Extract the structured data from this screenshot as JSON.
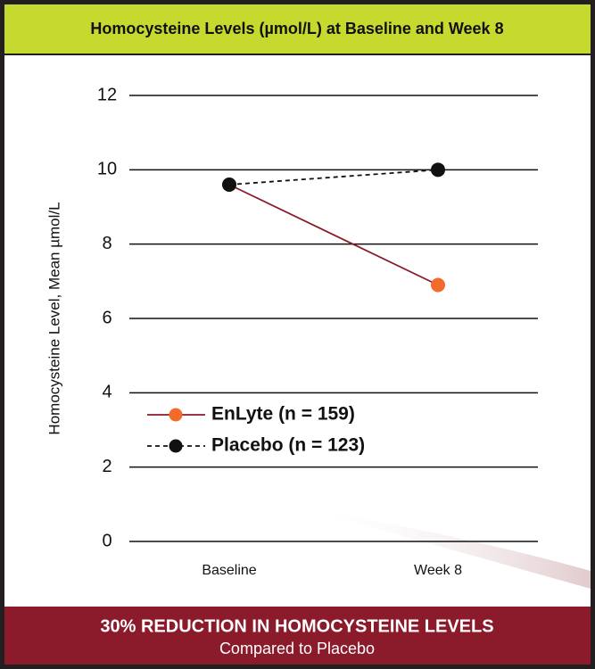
{
  "chart_data": {
    "type": "line",
    "title": "Homocysteine Levels (µmol/L) at Baseline and Week 8",
    "y_label": "Homocysteine Level, Mean µmol/L",
    "categories": [
      "Baseline",
      "Week 8"
    ],
    "series": [
      {
        "name": "EnLyte (n = 159)",
        "color": "#f26b2a",
        "line_color": "#8b1a2a",
        "linestyle": "solid",
        "values": [
          9.6,
          6.9
        ]
      },
      {
        "name": "Placebo (n = 123)",
        "color": "#111111",
        "line_color": "#111111",
        "linestyle": "dashed",
        "values": [
          9.6,
          10.0
        ]
      }
    ],
    "ylim": [
      0,
      12
    ],
    "yticks": [
      0,
      2,
      4,
      6,
      8,
      10,
      12
    ],
    "grid": true,
    "legend": "lower left",
    "annotations": [
      "30% REDUCTION IN HOMOCYSTEINE LEVELS",
      "Compared to Placebo"
    ]
  }
}
